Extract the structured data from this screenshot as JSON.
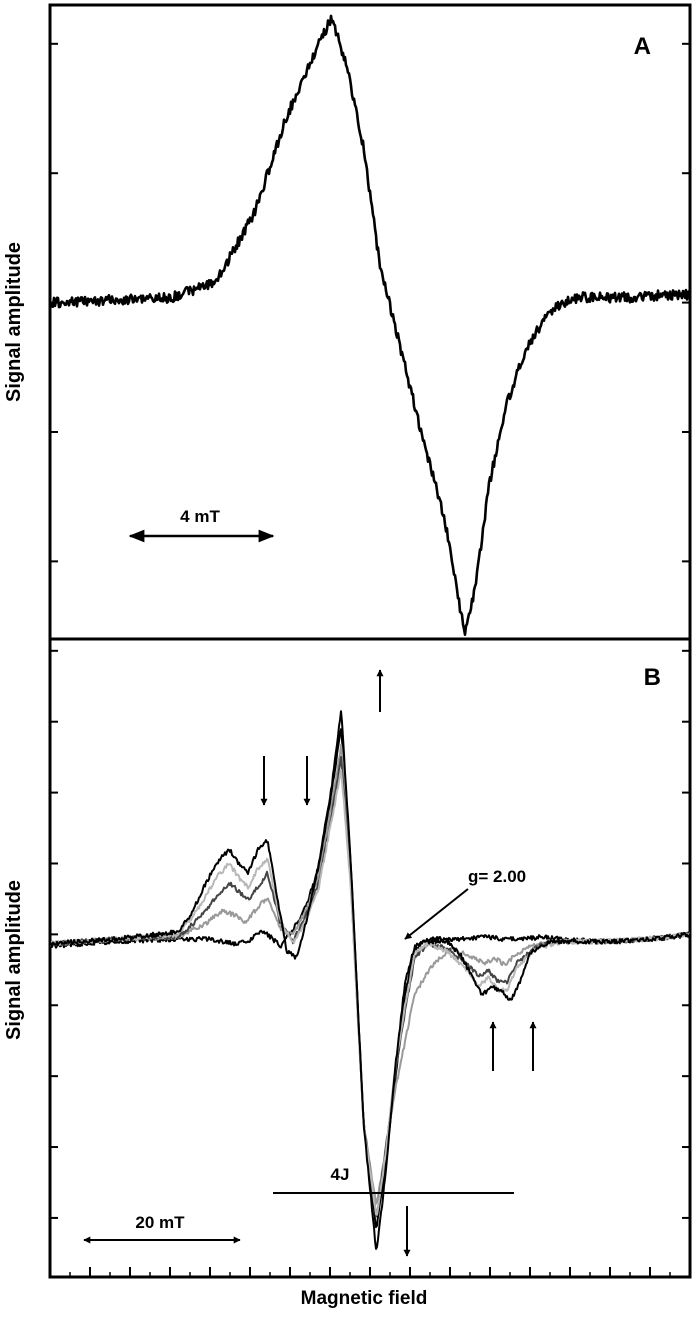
{
  "figure": {
    "xlabel": "Magnetic field",
    "ylabel_a": "Signal amplitude",
    "ylabel_b": "Signal amplitude"
  },
  "chart_data": [
    {
      "type": "line",
      "panel_label": "A",
      "xlabel": "",
      "ylabel": "Signal amplitude",
      "xlim": [
        0,
        100
      ],
      "ylim": [
        -1.3,
        1.15
      ],
      "x_ticks": "none",
      "y_ticks": [
        -1.0,
        -0.5,
        0.0,
        0.5,
        1.0
      ],
      "tick_labels_visible": false,
      "scale_bar": {
        "label": "4 mT",
        "from": 11,
        "to": 34
      },
      "series": [
        {
          "color": "#000000",
          "x": [
            0,
            10,
            19,
            26,
            32,
            37,
            42,
            44,
            46.5,
            49,
            51.5,
            54,
            56,
            58,
            60,
            62,
            63.5,
            64.8,
            66.5,
            68.5,
            71,
            74,
            77,
            80,
            83,
            87,
            92,
            96,
            100
          ],
          "values": [
            0.0,
            0.01,
            0.02,
            0.08,
            0.35,
            0.72,
            1.0,
            1.1,
            0.9,
            0.6,
            0.15,
            -0.1,
            -0.3,
            -0.5,
            -0.68,
            -0.88,
            -1.1,
            -1.28,
            -1.1,
            -0.72,
            -0.42,
            -0.2,
            -0.07,
            0.0,
            0.02,
            0.02,
            0.02,
            0.03,
            0.03
          ]
        }
      ]
    },
    {
      "type": "line",
      "panel_label": "B",
      "xlabel": "Magnetic field",
      "ylabel": "Signal amplitude",
      "xlim": [
        0,
        100
      ],
      "ylim": [
        -1.45,
        1.25
      ],
      "x_tick_count": 16,
      "y_ticks": [
        -1.2,
        -0.9,
        -0.6,
        -0.3,
        0.0,
        0.3,
        0.6,
        0.9,
        1.2
      ],
      "tick_labels_visible": false,
      "scale_bar": {
        "label": "20 mT",
        "from": 5,
        "to": 30
      },
      "span_bar": {
        "label": "4J",
        "from": 35,
        "to": 73
      },
      "annotation": {
        "label": "g= 2.00"
      },
      "series": [
        {
          "color": "#000000",
          "x": [
            0,
            10,
            20,
            25,
            29,
            31,
            33,
            34,
            36,
            38,
            40,
            42,
            44,
            45.5,
            47,
            49,
            51,
            52.5,
            54,
            55.5,
            57,
            59,
            62,
            65,
            68,
            71,
            74,
            77,
            80,
            85,
            90,
            95,
            100
          ],
          "values": [
            -0.05,
            -0.03,
            -0.02,
            -0.02,
            -0.04,
            -0.03,
            0.02,
            0.0,
            -0.05,
            0.02,
            0.12,
            0.28,
            0.6,
            0.88,
            0.3,
            -0.8,
            -1.25,
            -0.95,
            -0.6,
            -0.25,
            -0.06,
            -0.02,
            -0.02,
            -0.02,
            -0.01,
            -0.02,
            -0.02,
            -0.01,
            -0.02,
            -0.03,
            -0.03,
            -0.02,
            0.0
          ]
        },
        {
          "color": "#9a9a9a",
          "x": [
            0,
            10,
            20,
            24,
            27,
            29,
            30.5,
            32,
            34,
            36,
            38,
            40,
            42,
            44,
            45.5,
            47,
            49,
            51,
            52.5,
            54,
            55.5,
            57,
            60,
            63,
            66,
            68,
            69.5,
            71,
            73,
            75,
            78,
            82,
            88,
            94,
            100
          ],
          "values": [
            -0.04,
            -0.02,
            -0.01,
            0.04,
            0.1,
            0.08,
            0.05,
            0.1,
            0.16,
            0.02,
            0.0,
            0.1,
            0.25,
            0.55,
            0.8,
            0.25,
            -0.8,
            -1.15,
            -0.9,
            -0.65,
            -0.45,
            -0.25,
            -0.12,
            -0.06,
            -0.1,
            -0.12,
            -0.1,
            -0.13,
            -0.08,
            -0.05,
            -0.03,
            -0.03,
            -0.03,
            -0.02,
            0.0
          ]
        },
        {
          "color": "#454545",
          "x": [
            0,
            10,
            20,
            23,
            26,
            28,
            29.5,
            31,
            32.5,
            34,
            36,
            38,
            40,
            42,
            44,
            45.5,
            47,
            49,
            51,
            52.5,
            54,
            55.5,
            57,
            59,
            62,
            65,
            67,
            68.5,
            70,
            71.5,
            73,
            76,
            80,
            86,
            93,
            100
          ],
          "values": [
            -0.04,
            -0.02,
            -0.01,
            0.06,
            0.16,
            0.22,
            0.18,
            0.15,
            0.2,
            0.26,
            0.05,
            -0.03,
            0.08,
            0.22,
            0.5,
            0.75,
            0.22,
            -0.8,
            -1.2,
            -0.9,
            -0.58,
            -0.32,
            -0.1,
            -0.04,
            -0.06,
            -0.12,
            -0.18,
            -0.15,
            -0.2,
            -0.2,
            -0.12,
            -0.05,
            -0.03,
            -0.03,
            -0.02,
            0.0
          ]
        },
        {
          "color": "#b8b8b8",
          "x": [
            0,
            10,
            20,
            23,
            26,
            28,
            29.5,
            31,
            32.5,
            34,
            36,
            38,
            40,
            42,
            44,
            45.5,
            47,
            49,
            51,
            52.5,
            54,
            55.5,
            57,
            59,
            62,
            65,
            67,
            68.5,
            70,
            71.5,
            73,
            76,
            80,
            86,
            93,
            100
          ],
          "values": [
            -0.04,
            -0.02,
            0.0,
            0.1,
            0.24,
            0.3,
            0.24,
            0.2,
            0.28,
            0.32,
            0.06,
            -0.04,
            0.06,
            0.2,
            0.48,
            0.7,
            0.2,
            -0.8,
            -1.2,
            -0.92,
            -0.55,
            -0.3,
            -0.08,
            -0.04,
            -0.07,
            -0.15,
            -0.22,
            -0.18,
            -0.24,
            -0.23,
            -0.14,
            -0.06,
            -0.03,
            -0.03,
            -0.02,
            0.0
          ]
        },
        {
          "color": "#000000",
          "x": [
            0,
            10,
            20,
            22,
            24,
            26,
            28,
            29.5,
            31,
            32.5,
            34,
            35.5,
            37,
            38.5,
            40,
            42,
            44,
            45.5,
            47,
            49,
            51,
            52.5,
            54,
            55.5,
            57,
            59,
            62,
            64,
            66,
            67.5,
            69,
            70.5,
            72,
            73.5,
            75,
            78,
            82,
            88,
            94,
            100
          ],
          "values": [
            -0.04,
            -0.02,
            0.01,
            0.08,
            0.2,
            0.3,
            0.36,
            0.3,
            0.26,
            0.36,
            0.4,
            0.15,
            -0.07,
            -0.1,
            0.05,
            0.3,
            0.62,
            0.95,
            0.3,
            -0.8,
            -1.35,
            -1.0,
            -0.55,
            -0.2,
            -0.05,
            -0.03,
            -0.03,
            -0.08,
            -0.18,
            -0.26,
            -0.22,
            -0.24,
            -0.28,
            -0.2,
            -0.08,
            -0.03,
            -0.03,
            -0.03,
            -0.02,
            0.0
          ]
        }
      ]
    }
  ]
}
